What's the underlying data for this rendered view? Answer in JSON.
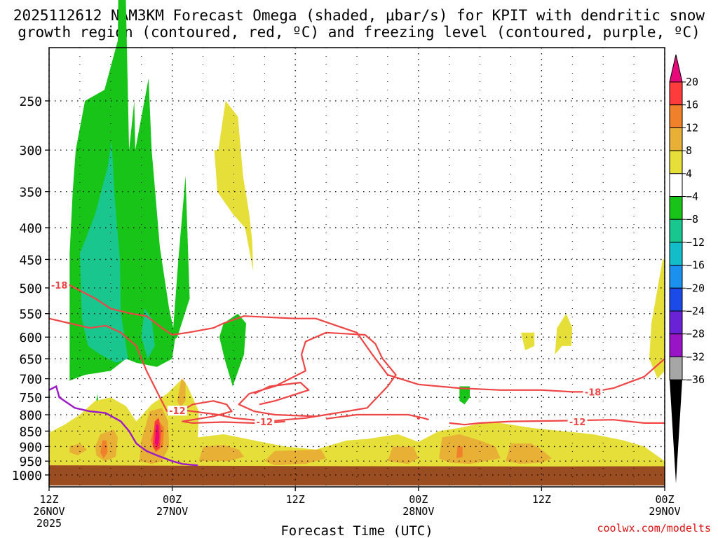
{
  "title_line1": "2025112612 NAM3KM Forecast Omega (shaded, μbar/s) for KPIT with dendritic snow",
  "title_line2": "growth region (contoured, red, ºC) and freezing level (contoured, purple, ºC)",
  "credit": "coolwx.com/modelts",
  "chart_data": {
    "type": "contour",
    "xlabel": "Forecast Time (UTC)",
    "ylabel": "",
    "x_ticks": [
      {
        "h": 0,
        "l1": "12Z",
        "l2": "26NOV",
        "l3": "2025"
      },
      {
        "h": 12,
        "l1": "00Z",
        "l2": "27NOV",
        "l3": ""
      },
      {
        "h": 24,
        "l1": "12Z",
        "l2": "",
        "l3": ""
      },
      {
        "h": 36,
        "l1": "00Z",
        "l2": "28NOV",
        "l3": ""
      },
      {
        "h": 48,
        "l1": "12Z",
        "l2": "",
        "l3": ""
      },
      {
        "h": 60,
        "l1": "00Z",
        "l2": "29NOV",
        "l3": ""
      }
    ],
    "x_minor_hours": [
      3,
      6,
      9,
      15,
      18,
      21,
      27,
      30,
      33,
      39,
      42,
      45,
      51,
      54,
      57
    ],
    "y_ticks": [
      250,
      300,
      350,
      400,
      450,
      500,
      550,
      600,
      650,
      700,
      750,
      800,
      850,
      900,
      950,
      1000
    ],
    "colorbar": {
      "labels": [
        "20",
        "16",
        "12",
        "8",
        "4",
        "−4",
        "−8",
        "−12",
        "−16",
        "−20",
        "−24",
        "−28",
        "−32",
        "−36"
      ],
      "colors": [
        "#ff3b3b",
        "#f0802a",
        "#e8b035",
        "#e6df3a",
        "#ffffff",
        "#19c419",
        "#19c78e",
        "#12bdc9",
        "#1a91ef",
        "#1a4be8",
        "#6a22d6",
        "#9a14c7",
        "#a6a6a6"
      ],
      "top_color": "#e8087a",
      "bottom_color": "#000000"
    },
    "contours": [
      {
        "label": "-18",
        "color": "#ef4545",
        "label_at": [
          1,
          495
        ]
      },
      {
        "label": "-18",
        "color": "#ef4545",
        "label_at": [
          53,
          735
        ]
      },
      {
        "label": "-12",
        "color": "#ef4545",
        "label_at": [
          12.5,
          788
        ]
      },
      {
        "label": "-12",
        "color": "#ef4545",
        "label_at": [
          21,
          821
        ]
      },
      {
        "label": "-12",
        "color": "#ef4545",
        "label_at": [
          51.5,
          821
        ]
      }
    ],
    "freezing_level_color": "#9b19c9",
    "ground_color": "#9b4d22"
  }
}
